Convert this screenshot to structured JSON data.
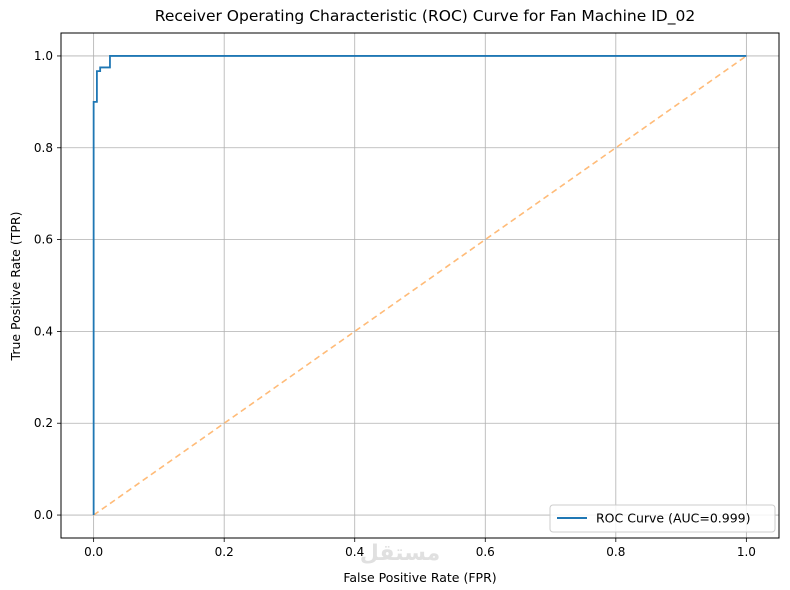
{
  "chart_data": {
    "type": "line",
    "title": "Receiver Operating Characteristic (ROC) Curve for Fan Machine ID_02",
    "xlabel": "False Positive Rate (FPR)",
    "ylabel": "True Positive Rate (TPR)",
    "xlim": [
      -0.05,
      1.05
    ],
    "ylim": [
      -0.05,
      1.05
    ],
    "xticks": [
      0.0,
      0.2,
      0.4,
      0.6,
      0.8,
      1.0
    ],
    "yticks": [
      0.0,
      0.2,
      0.4,
      0.6,
      0.8,
      1.0
    ],
    "xtick_labels": [
      "0.0",
      "0.2",
      "0.4",
      "0.6",
      "0.8",
      "1.0"
    ],
    "ytick_labels": [
      "0.0",
      "0.2",
      "0.4",
      "0.6",
      "0.8",
      "1.0"
    ],
    "grid": true,
    "legend_position": "bottom-right",
    "series": [
      {
        "name": "ROC Curve (AUC=0.999)",
        "color": "#1f77b4",
        "style": "solid",
        "x": [
          0.0,
          0.0,
          0.005,
          0.005,
          0.01,
          0.01,
          0.025,
          0.025,
          1.0
        ],
        "y": [
          0.0,
          0.9,
          0.9,
          0.967,
          0.967,
          0.975,
          0.975,
          1.0,
          1.0
        ]
      },
      {
        "color": "#ffbb78",
        "style": "dashed",
        "x": [
          0.0,
          1.0
        ],
        "y": [
          0.0,
          1.0
        ]
      }
    ]
  },
  "watermark": {
    "text": "مستقل"
  }
}
